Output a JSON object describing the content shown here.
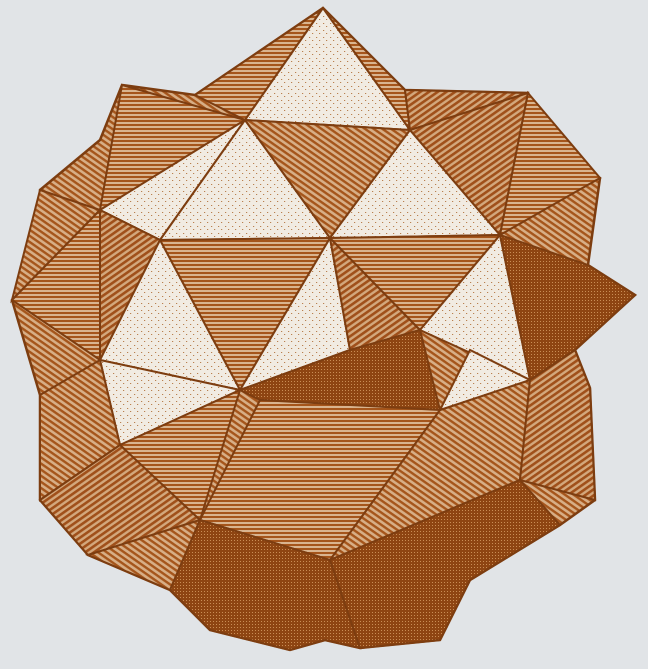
{
  "figure": {
    "subject_icon": "stellated-polyhedron-engraving-icon",
    "palette": {
      "background": "#e1e4e7",
      "ink": "#a5551b",
      "ink_dark": "#8e4512",
      "paper_face": "#efe9df",
      "outline": "#7d3d10"
    }
  }
}
